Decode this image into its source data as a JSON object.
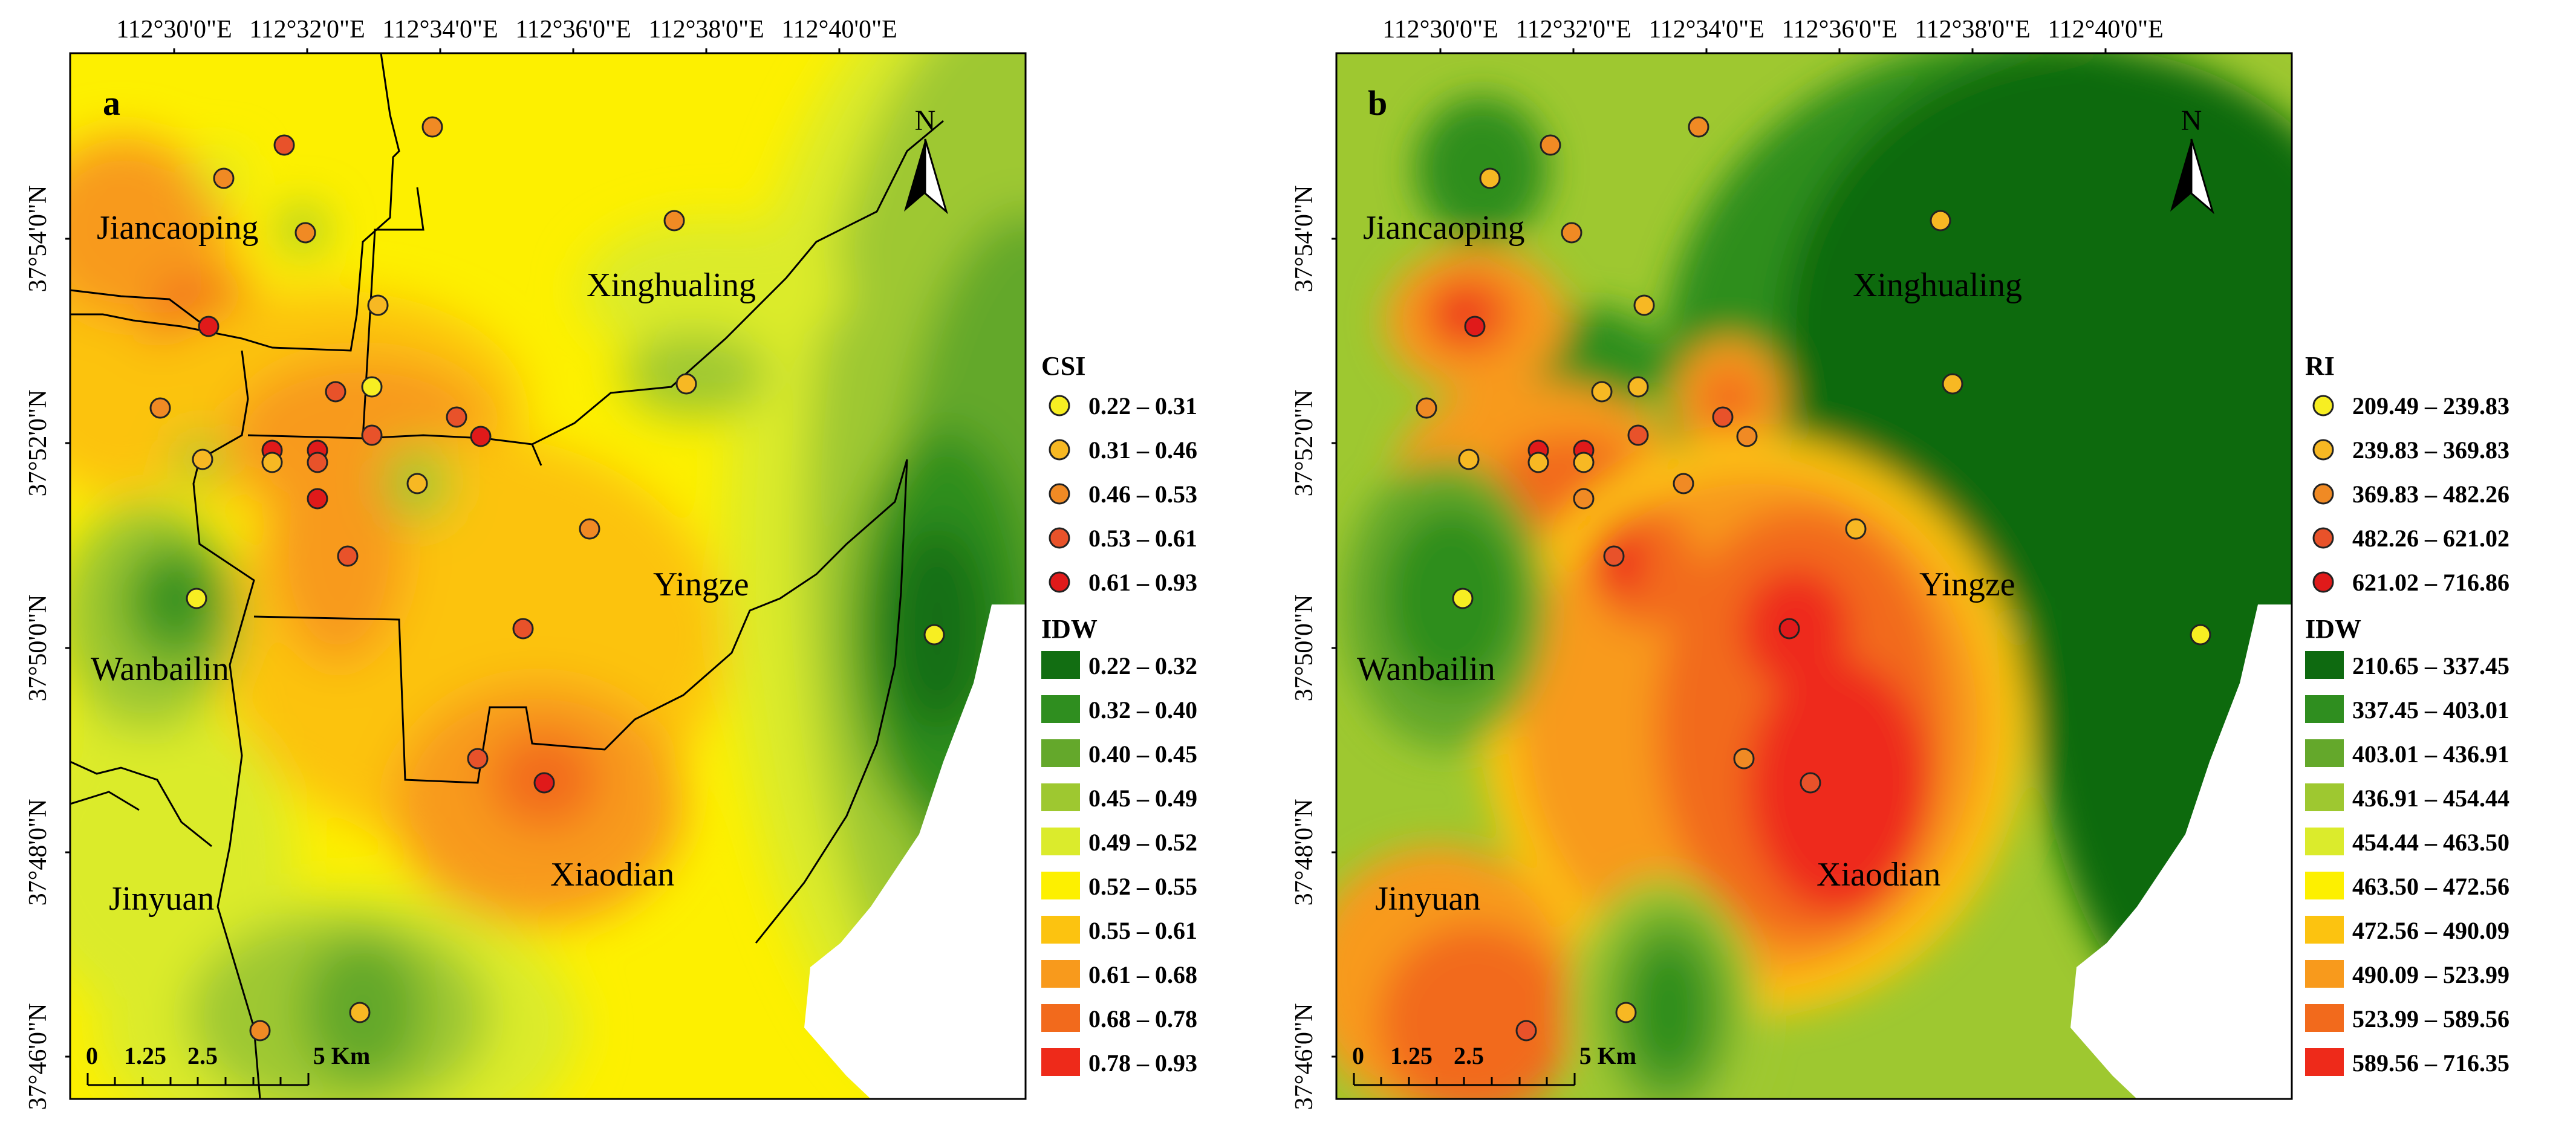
{
  "axes": {
    "x_ticks": [
      "112°30'0\"E",
      "112°32'0\"E",
      "112°34'0\"E",
      "112°36'0\"E",
      "112°38'0\"E",
      "112°40'0\"E"
    ],
    "y_ticks": [
      "37°54'0\"N",
      "37°52'0\"N",
      "37°50'0\"N",
      "37°48'0\"N",
      "37°46'0\"N"
    ]
  },
  "panels": [
    {
      "letter": "a",
      "points_title": "CSI",
      "points_legend": [
        {
          "label": "0.22 – 0.31",
          "color": "#f7ee22"
        },
        {
          "label": "0.31 – 0.46",
          "color": "#f7b823"
        },
        {
          "label": "0.46 – 0.53",
          "color": "#f08a24"
        },
        {
          "label": "0.53 – 0.61",
          "color": "#e8522a"
        },
        {
          "label": "0.61 – 0.93",
          "color": "#e01a1a"
        }
      ],
      "idw_title": "IDW",
      "idw_legend": [
        {
          "label": "0.22 – 0.32",
          "color": "#126e12"
        },
        {
          "label": "0.32 – 0.40",
          "color": "#2f8e1f"
        },
        {
          "label": "0.40 – 0.45",
          "color": "#64a82b"
        },
        {
          "label": "0.45 – 0.49",
          "color": "#9ec830"
        },
        {
          "label": "0.49 – 0.52",
          "color": "#dbeb2c"
        },
        {
          "label": "0.52 – 0.55",
          "color": "#fdf000"
        },
        {
          "label": "0.55 – 0.61",
          "color": "#fcc310"
        },
        {
          "label": "0.61 – 0.68",
          "color": "#f89a1c"
        },
        {
          "label": "0.68 – 0.78",
          "color": "#f26a1c"
        },
        {
          "label": "0.78 – 0.93",
          "color": "#ee2a1a"
        }
      ]
    },
    {
      "letter": "b",
      "points_title": "RI",
      "points_legend": [
        {
          "label": "209.49 – 239.83",
          "color": "#f7ee22"
        },
        {
          "label": "239.83 – 369.83",
          "color": "#f7b823"
        },
        {
          "label": "369.83 – 482.26",
          "color": "#f08a24"
        },
        {
          "label": "482.26 – 621.02",
          "color": "#e8522a"
        },
        {
          "label": "621.02 – 716.86",
          "color": "#e01a1a"
        }
      ],
      "idw_title": "IDW",
      "idw_legend": [
        {
          "label": "210.65 – 337.45",
          "color": "#0e6a10"
        },
        {
          "label": "337.45 – 403.01",
          "color": "#2f8e1f"
        },
        {
          "label": "403.01 – 436.91",
          "color": "#64a82b"
        },
        {
          "label": "436.91 – 454.44",
          "color": "#9ec830"
        },
        {
          "label": "454.44 – 463.50",
          "color": "#dbeb2c"
        },
        {
          "label": "463.50 – 472.56",
          "color": "#fdf000"
        },
        {
          "label": "472.56 – 490.09",
          "color": "#fcc310"
        },
        {
          "label": "490.09 – 523.99",
          "color": "#f89a1c"
        },
        {
          "label": "523.99 – 589.56",
          "color": "#f26a1c"
        },
        {
          "label": "589.56 – 716.35",
          "color": "#ee2a1a"
        }
      ]
    }
  ],
  "districts": [
    "Jiancaoping",
    "Xinghualing",
    "Yingze",
    "Wanbailin",
    "Jinyuan",
    "Xiaodian"
  ],
  "north_label": "N",
  "scale_bar": {
    "labels": [
      "0",
      "1.25",
      "2.5",
      "5 Km"
    ]
  }
}
